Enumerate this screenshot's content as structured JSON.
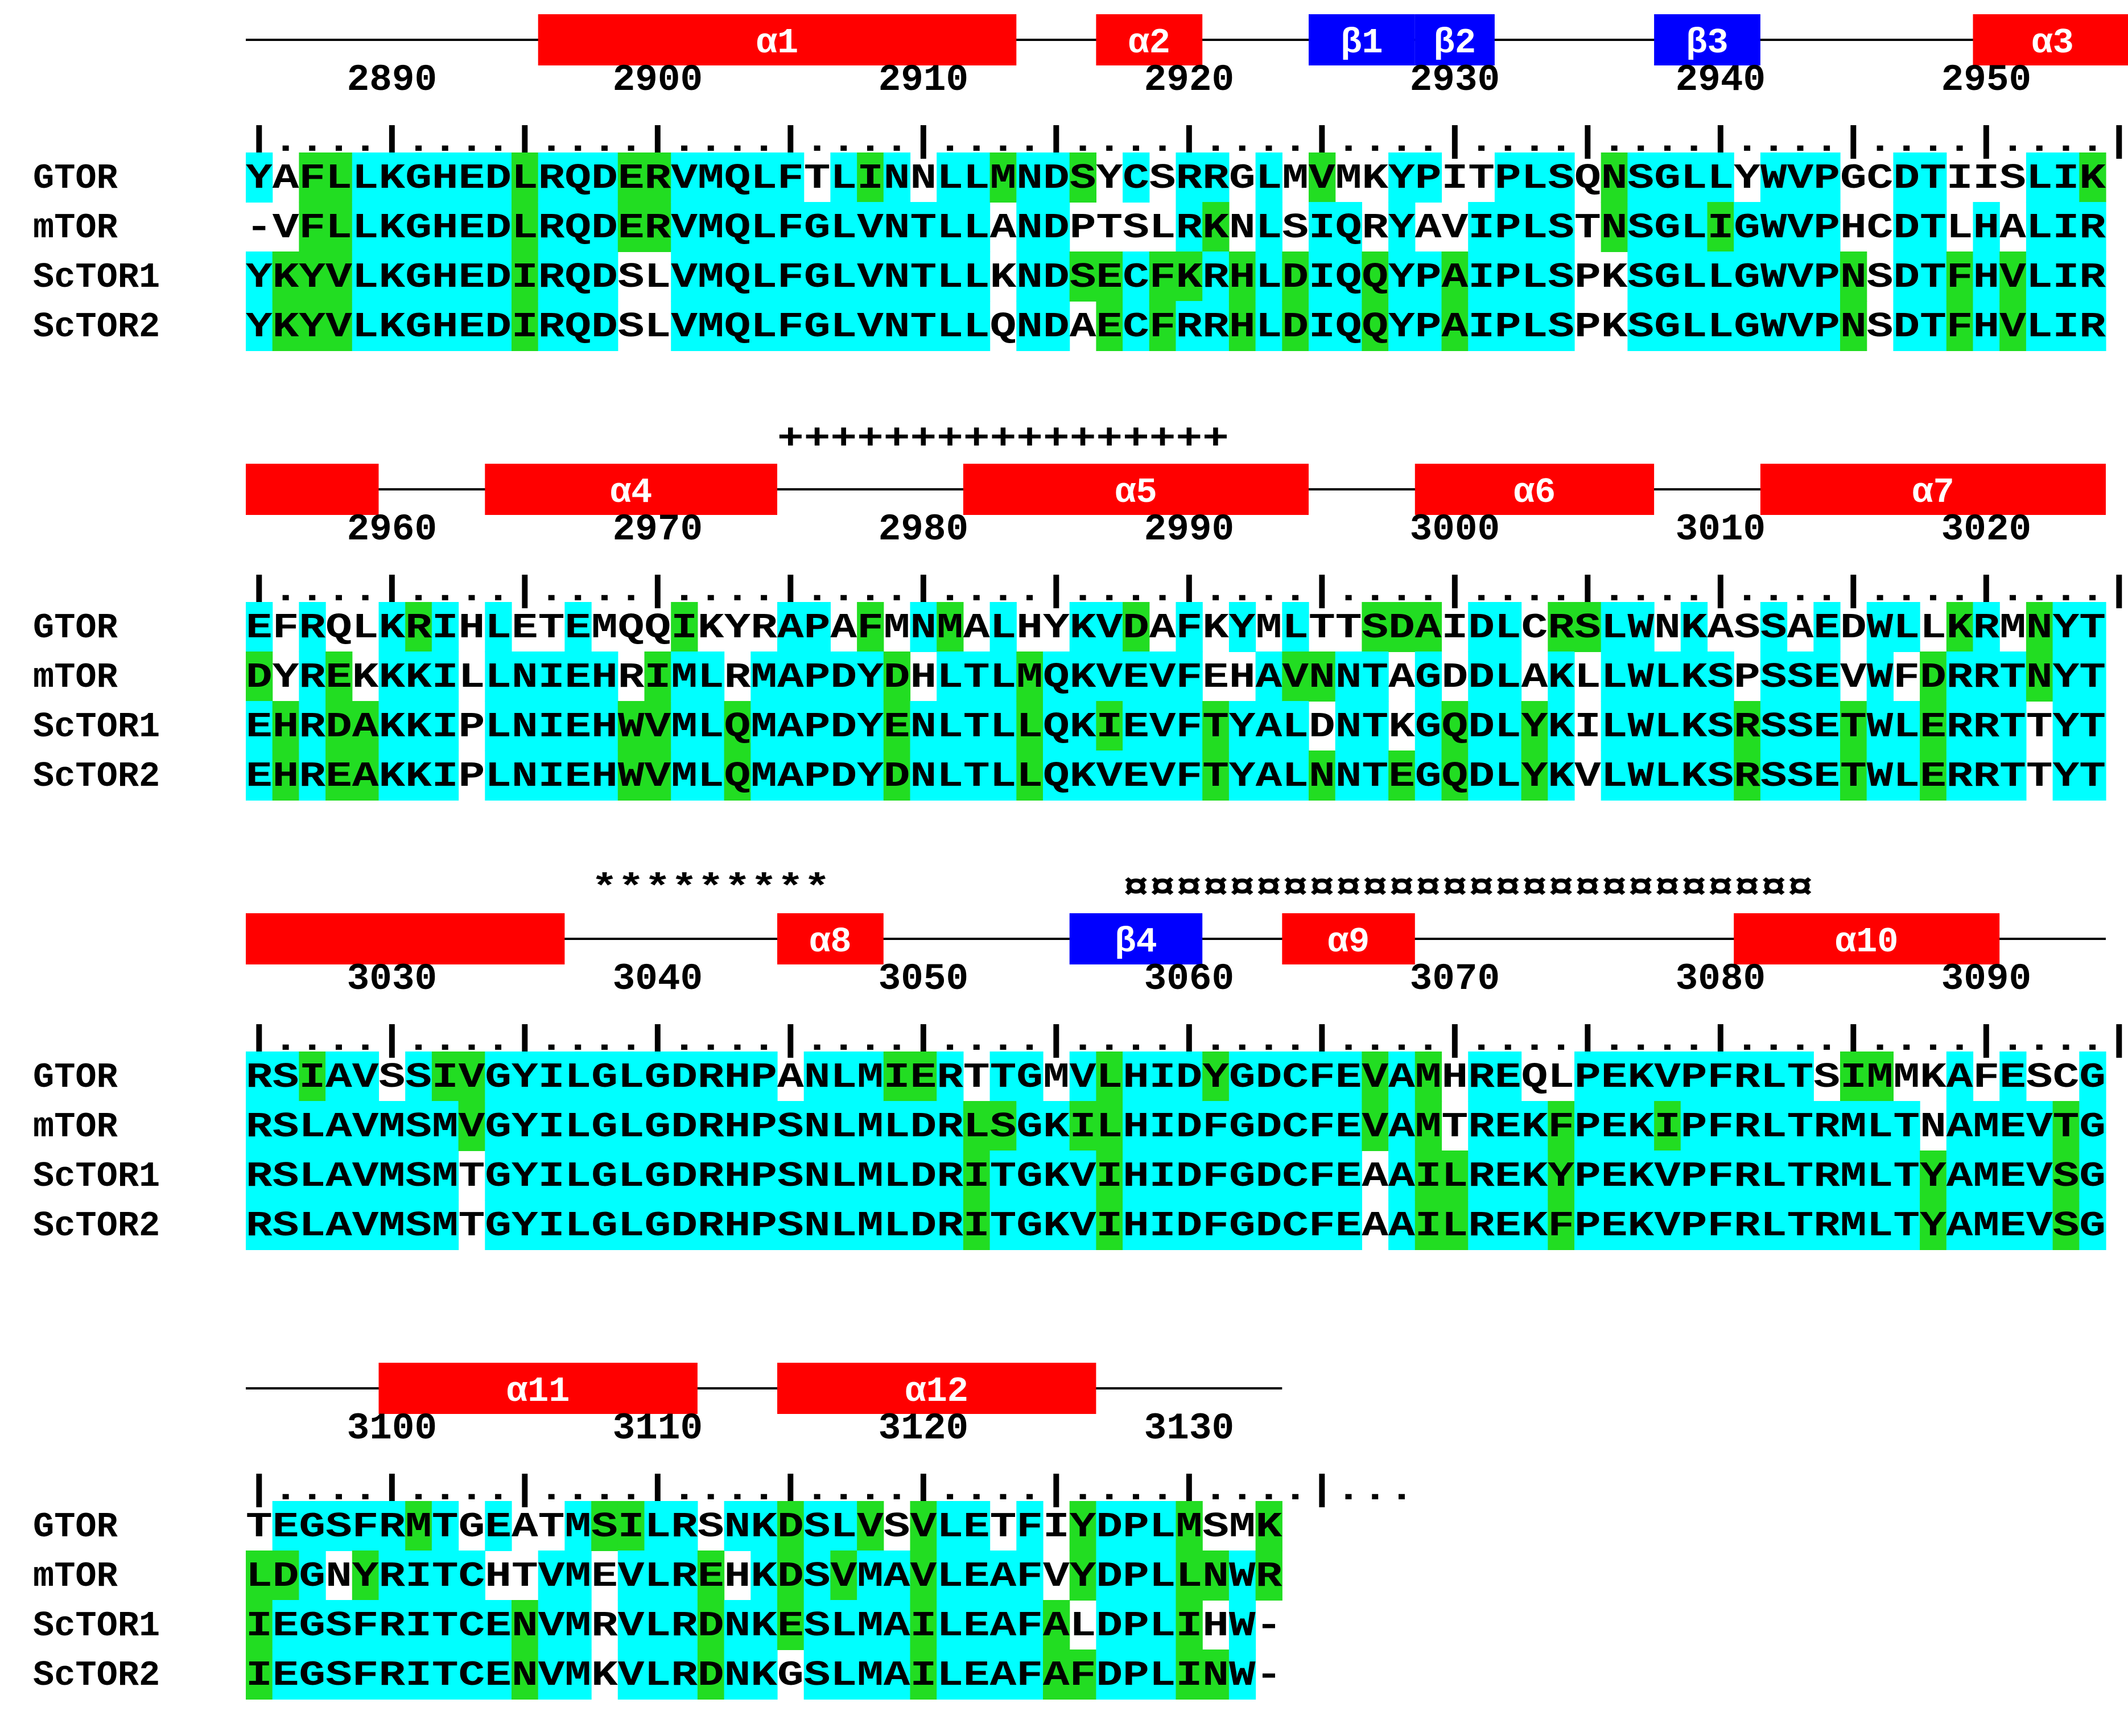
{
  "colors": {
    "helix": "#ff0000",
    "strand": "#0000ff",
    "conserved": "#00ffff",
    "similar": "#22dd22",
    "line": "#000000"
  },
  "sequence_names": [
    "GTOR",
    "mTOR",
    "ScTOR1",
    "ScTOR2"
  ],
  "blocks": [
    {
      "start": 2885,
      "numbers": [
        "2890",
        "2900",
        "2910",
        "2920",
        "2930",
        "2940",
        "2950"
      ],
      "ruler": "|....|....|....|....|....|....|....|....|....|....|....|....|....|....|.....",
      "sequences": [
        "YAFLLKGHEDLRQDERVMQLFTLINNLLMNDSYCSRRGLMVMKYPITPLSQNSGLLYWVPGCDTIISLIK",
        "-VFLLKGHEDLRQDERVMQLFGLVNTLLANDPTSLRKNLSIQRYAVIPLSTNSGLIGWVPHCDTLHALIR",
        "YKYVLKGHEDIRQDSLVMQLFGLVNTLLKNDSECFKRHLDIQQYPAIPLSPKSGLLGWVPNSDTFHVLIR",
        "YKYVLKGHEDIRQDSLVMQLFGLVNTLLQNDAECFRRHLDIQQYPAIPLSPKSGLLGWVPNSDTFHVLIR"
      ],
      "elements": [
        {
          "label": "α1",
          "type": "helix",
          "start": 2896,
          "end": 2913
        },
        {
          "label": "α2",
          "type": "helix",
          "start": 2917,
          "end": 2920
        },
        {
          "label": "β1",
          "type": "strand",
          "start": 2925,
          "end": 2928
        },
        {
          "label": "β2",
          "type": "strand",
          "start": 2929,
          "end": 2931
        },
        {
          "label": "β3",
          "type": "strand",
          "start": 2938,
          "end": 2941
        },
        {
          "label": "α3",
          "type": "helix",
          "start": 2950,
          "end": 2955
        }
      ],
      "marks": null
    },
    {
      "start": 2955,
      "numbers": [
        "2960",
        "2970",
        "2980",
        "2990",
        "3000",
        "3010",
        "3020"
      ],
      "ruler": "|....|....|....|....|....|....|....|....|....|....|....|....|....|....|.....",
      "sequences": [
        "EFRQLKRIHLETEMQQIKYRAPAFMNMALHYKVDAFKYMLTTSDAIDLCRSLWNKASSAEDWLLKRMNYT",
        "DYREKKKILLNIEHRIMLRMAPDYDHLTLMQKVEVFEHAVNNTAGDDLAKLLWLKSPSSEVWFDRRTNYT",
        "EHRDAKKIPLNIEHWVMLQMAPDYENLTLLQKIEVFTYALDNTKGQDLYKILWLKSRSSETWLERRTTYT",
        "EHREAKKIPLNIEHWVMLQMAPDYDNLTLLQKVEVFTYALNNTEGQDLYKVLWLKSRSSETWLERRTTYT"
      ],
      "elements": [
        {
          "label": "",
          "type": "helix",
          "start": 2955,
          "end": 2959
        },
        {
          "label": "α4",
          "type": "helix",
          "start": 2964,
          "end": 2974
        },
        {
          "label": "α5",
          "type": "helix",
          "start": 2982,
          "end": 2994
        },
        {
          "label": "α6",
          "type": "helix",
          "start": 2999,
          "end": 3007
        },
        {
          "label": "α7",
          "type": "helix",
          "start": 3012,
          "end": 3024
        }
      ],
      "marks": {
        "text": "+++++++++++++++++",
        "start": 2975
      }
    },
    {
      "start": 3025,
      "numbers": [
        "3030",
        "3040",
        "3050",
        "3060",
        "3070",
        "3080",
        "3090"
      ],
      "ruler": "|....|....|....|....|....|....|....|....|....|....|....|....|....|....|.....",
      "sequences": [
        "RSIAVSSIVGYILGLGDRHPANLMIERTTGMVLHIDYGDCFEVAMHREQLPEKVPFRLTSIMMKAFESCG",
        "RSLAVMSMVGYILGLGDRHPSNLMLDRLSGKILHIDFGDCFEVAMTREKFPEKIPFRLTRMLTNAMEVTG",
        "RSLAVMSMTGYILGLGDRHPSNLMLDRITGKVIHIDFGDCFEAAILREKYPEKVPFRLTRMLTYAMEVSG",
        "RSLAVMSMTGYILGLGDRHPSNLMLDRITGKVIHIDFGDCFEAAILREKFPEKVPFRLTRMLTYAMEVSG"
      ],
      "elements": [
        {
          "label": "",
          "type": "helix",
          "start": 3025,
          "end": 3036
        },
        {
          "label": "α8",
          "type": "helix",
          "start": 3045,
          "end": 3048
        },
        {
          "label": "β4",
          "type": "strand",
          "start": 3056,
          "end": 3060
        },
        {
          "label": "α9",
          "type": "helix",
          "start": 3064,
          "end": 3068
        },
        {
          "label": "α10",
          "type": "helix",
          "start": 3081,
          "end": 3090
        }
      ],
      "marks": {
        "text": "*********",
        "start": 3038,
        "mark2": {
          "text": "¤¤¤¤¤¤¤¤¤¤¤¤¤¤¤¤¤¤¤¤¤¤¤¤¤¤",
          "start": 3058
        }
      }
    },
    {
      "start": 3095,
      "numbers": [
        "3100",
        "3110",
        "3120",
        "3130"
      ],
      "ruler": "|....|....|....|....|....|....|....|....|...",
      "sequences": [
        "TEGSFRMTGEATMSILRSNKDSLVSVLETFIYDPLMSMK",
        "LDGNYRITCHTVMEVLREHKDSVMAVLEAFVYDPLLNWR",
        "IEGSFRITCENVMRVLRDNKESLMAILEAFALDPLIHW-",
        "IEGSFRITCENVMKVLRDNKGSLMAILEAFAFDPLINW-"
      ],
      "elements": [
        {
          "label": "α11",
          "type": "helix",
          "start": 3100,
          "end": 3111
        },
        {
          "label": "α12",
          "type": "helix",
          "start": 3115,
          "end": 3126
        }
      ],
      "marks": null
    }
  ]
}
